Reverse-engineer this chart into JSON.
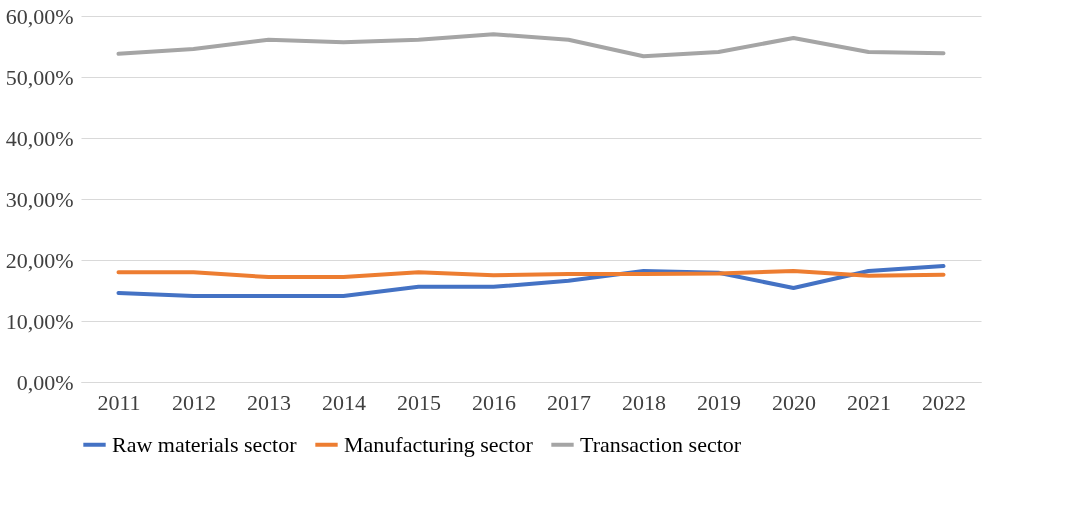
{
  "chart_data": {
    "type": "line",
    "categories": [
      "2011",
      "2012",
      "2013",
      "2014",
      "2015",
      "2016",
      "2017",
      "2018",
      "2019",
      "2020",
      "2021",
      "2022"
    ],
    "series": [
      {
        "name": "Raw materials sector",
        "color": "#4472c4",
        "values": [
          14.6,
          14.1,
          14.1,
          14.1,
          15.6,
          15.6,
          16.6,
          18.2,
          17.9,
          15.4,
          18.2,
          19.0
        ]
      },
      {
        "name": "Manufacturing sector",
        "color": "#ed7d31",
        "values": [
          18.0,
          18.0,
          17.2,
          17.2,
          18.0,
          17.5,
          17.7,
          17.7,
          17.8,
          18.2,
          17.4,
          17.6
        ]
      },
      {
        "name": "Transaction sector",
        "color": "#a5a5a5",
        "values": [
          53.8,
          54.6,
          56.1,
          55.7,
          56.1,
          57.0,
          56.1,
          53.4,
          54.1,
          56.4,
          54.1,
          53.9
        ]
      }
    ],
    "ylim": [
      0,
      60
    ],
    "yticks": [
      {
        "value": 0,
        "label": "0,00%"
      },
      {
        "value": 10,
        "label": "10,00%"
      },
      {
        "value": 20,
        "label": "20,00%"
      },
      {
        "value": 30,
        "label": "30,00%"
      },
      {
        "value": 40,
        "label": "40,00%"
      },
      {
        "value": 50,
        "label": "50,00%"
      },
      {
        "value": 60,
        "label": "60,00%"
      }
    ],
    "grid": "y",
    "legend": "bottom",
    "marker": "none",
    "line_style": "solid"
  }
}
